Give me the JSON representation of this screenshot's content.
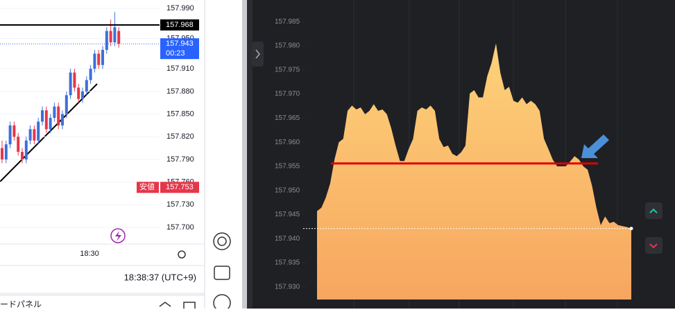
{
  "chart_data": [
    {
      "type": "candlestick",
      "ylim": [
        157.678,
        158.001
      ],
      "yticks": [
        {
          "value": 157.99,
          "label": "157.990"
        },
        {
          "value": 157.95,
          "label": "157.950"
        },
        {
          "value": 157.91,
          "label": "157.910"
        },
        {
          "value": 157.88,
          "label": "157.880"
        },
        {
          "value": 157.85,
          "label": "157.850"
        },
        {
          "value": 157.82,
          "label": "157.820"
        },
        {
          "value": 157.79,
          "label": "157.790"
        },
        {
          "value": 157.76,
          "label": "157.760"
        },
        {
          "value": 157.73,
          "label": "157.730"
        },
        {
          "value": 157.7,
          "label": "157.700"
        }
      ],
      "x_label": "18:30",
      "up_color": "#3d6fd9",
      "down_color": "#e5374a",
      "open": [
        157.805,
        157.79,
        157.81,
        157.835,
        157.82,
        157.8,
        157.79,
        157.815,
        157.83,
        157.815,
        157.84,
        157.855,
        157.83,
        157.845,
        157.86,
        157.835,
        157.85,
        157.875,
        157.905,
        157.885,
        157.87,
        157.88,
        157.895,
        157.91,
        157.93,
        157.915,
        157.935,
        157.96,
        157.945,
        157.96
      ],
      "high": [
        157.815,
        157.815,
        157.84,
        157.84,
        157.825,
        157.805,
        157.82,
        157.835,
        157.835,
        157.845,
        157.86,
        157.86,
        157.85,
        157.865,
        157.865,
        157.855,
        157.88,
        157.91,
        157.91,
        157.89,
        157.885,
        157.9,
        157.915,
        157.935,
        157.935,
        157.94,
        157.965,
        157.975,
        157.985,
        157.965
      ],
      "low": [
        157.785,
        157.785,
        157.805,
        157.815,
        157.795,
        157.785,
        157.785,
        157.81,
        157.81,
        157.81,
        157.835,
        157.825,
        157.825,
        157.84,
        157.83,
        157.83,
        157.845,
        157.87,
        157.88,
        157.865,
        157.865,
        157.875,
        157.89,
        157.905,
        157.91,
        157.91,
        157.93,
        157.94,
        157.94,
        157.938
      ],
      "close": [
        157.79,
        157.81,
        157.835,
        157.82,
        157.8,
        157.79,
        157.815,
        157.83,
        157.815,
        157.84,
        157.855,
        157.83,
        157.845,
        157.86,
        157.835,
        157.85,
        157.875,
        157.905,
        157.885,
        157.87,
        157.88,
        157.895,
        157.91,
        157.93,
        157.915,
        157.935,
        157.96,
        157.945,
        157.965,
        157.943
      ],
      "price_labels": [
        {
          "value": 157.968,
          "color": "#000000"
        },
        {
          "value": 157.943,
          "sub": "00:23",
          "color": "#2962ff"
        },
        {
          "value": 157.753,
          "tag": "安値",
          "color": "#e5374a"
        }
      ],
      "time": "18:38:37 (UTC+9)"
    },
    {
      "type": "area",
      "ylim": [
        157.9255,
        157.9895
      ],
      "yticks": [
        157.985,
        {
          "value": 157.98,
          "label": "157.980"
        },
        157.975,
        {
          "value": 157.97,
          "label": "157.970"
        },
        157.965,
        {
          "value": 157.96,
          "label": "157.960"
        },
        157.955,
        {
          "value": 157.95,
          "label": "157.950"
        },
        157.945,
        {
          "value": 157.94,
          "label": "157.940"
        },
        157.935,
        {
          "value": 157.93,
          "label": "157.930"
        }
      ],
      "color_top": "#fdd27a",
      "color_bottom": "#f7a65f",
      "values": [
        157.9457,
        157.9464,
        157.9485,
        157.9514,
        157.9564,
        157.96,
        157.9607,
        157.9665,
        157.9676,
        157.9668,
        157.9672,
        157.9658,
        157.9665,
        157.9679,
        157.9665,
        157.9668,
        157.9658,
        157.9629,
        157.9593,
        157.9561,
        157.9561,
        157.9586,
        157.9607,
        157.9665,
        157.9672,
        157.9668,
        157.9676,
        157.9665,
        157.9607,
        157.959,
        157.9593,
        157.9576,
        157.9571,
        157.9579,
        157.9593,
        157.9701,
        157.9708,
        157.9693,
        157.9693,
        157.9737,
        157.9765,
        157.9805,
        157.9744,
        157.9708,
        157.9715,
        157.9686,
        157.9682,
        157.9693,
        157.9679,
        157.9686,
        157.9679,
        157.9665,
        157.9607,
        157.9586,
        157.9564,
        157.955,
        157.955,
        157.955,
        157.956,
        157.9571,
        157.9564,
        157.955,
        157.9543,
        157.951,
        157.9464,
        157.9428,
        157.9446,
        157.9432,
        157.9435,
        157.9428,
        157.9426,
        157.9424,
        157.9421
      ],
      "reference_line": {
        "value": 157.9556,
        "color": "#e00000"
      },
      "current_line": 157.9421
    }
  ],
  "ui": {
    "panel_title": "ードパネル"
  }
}
